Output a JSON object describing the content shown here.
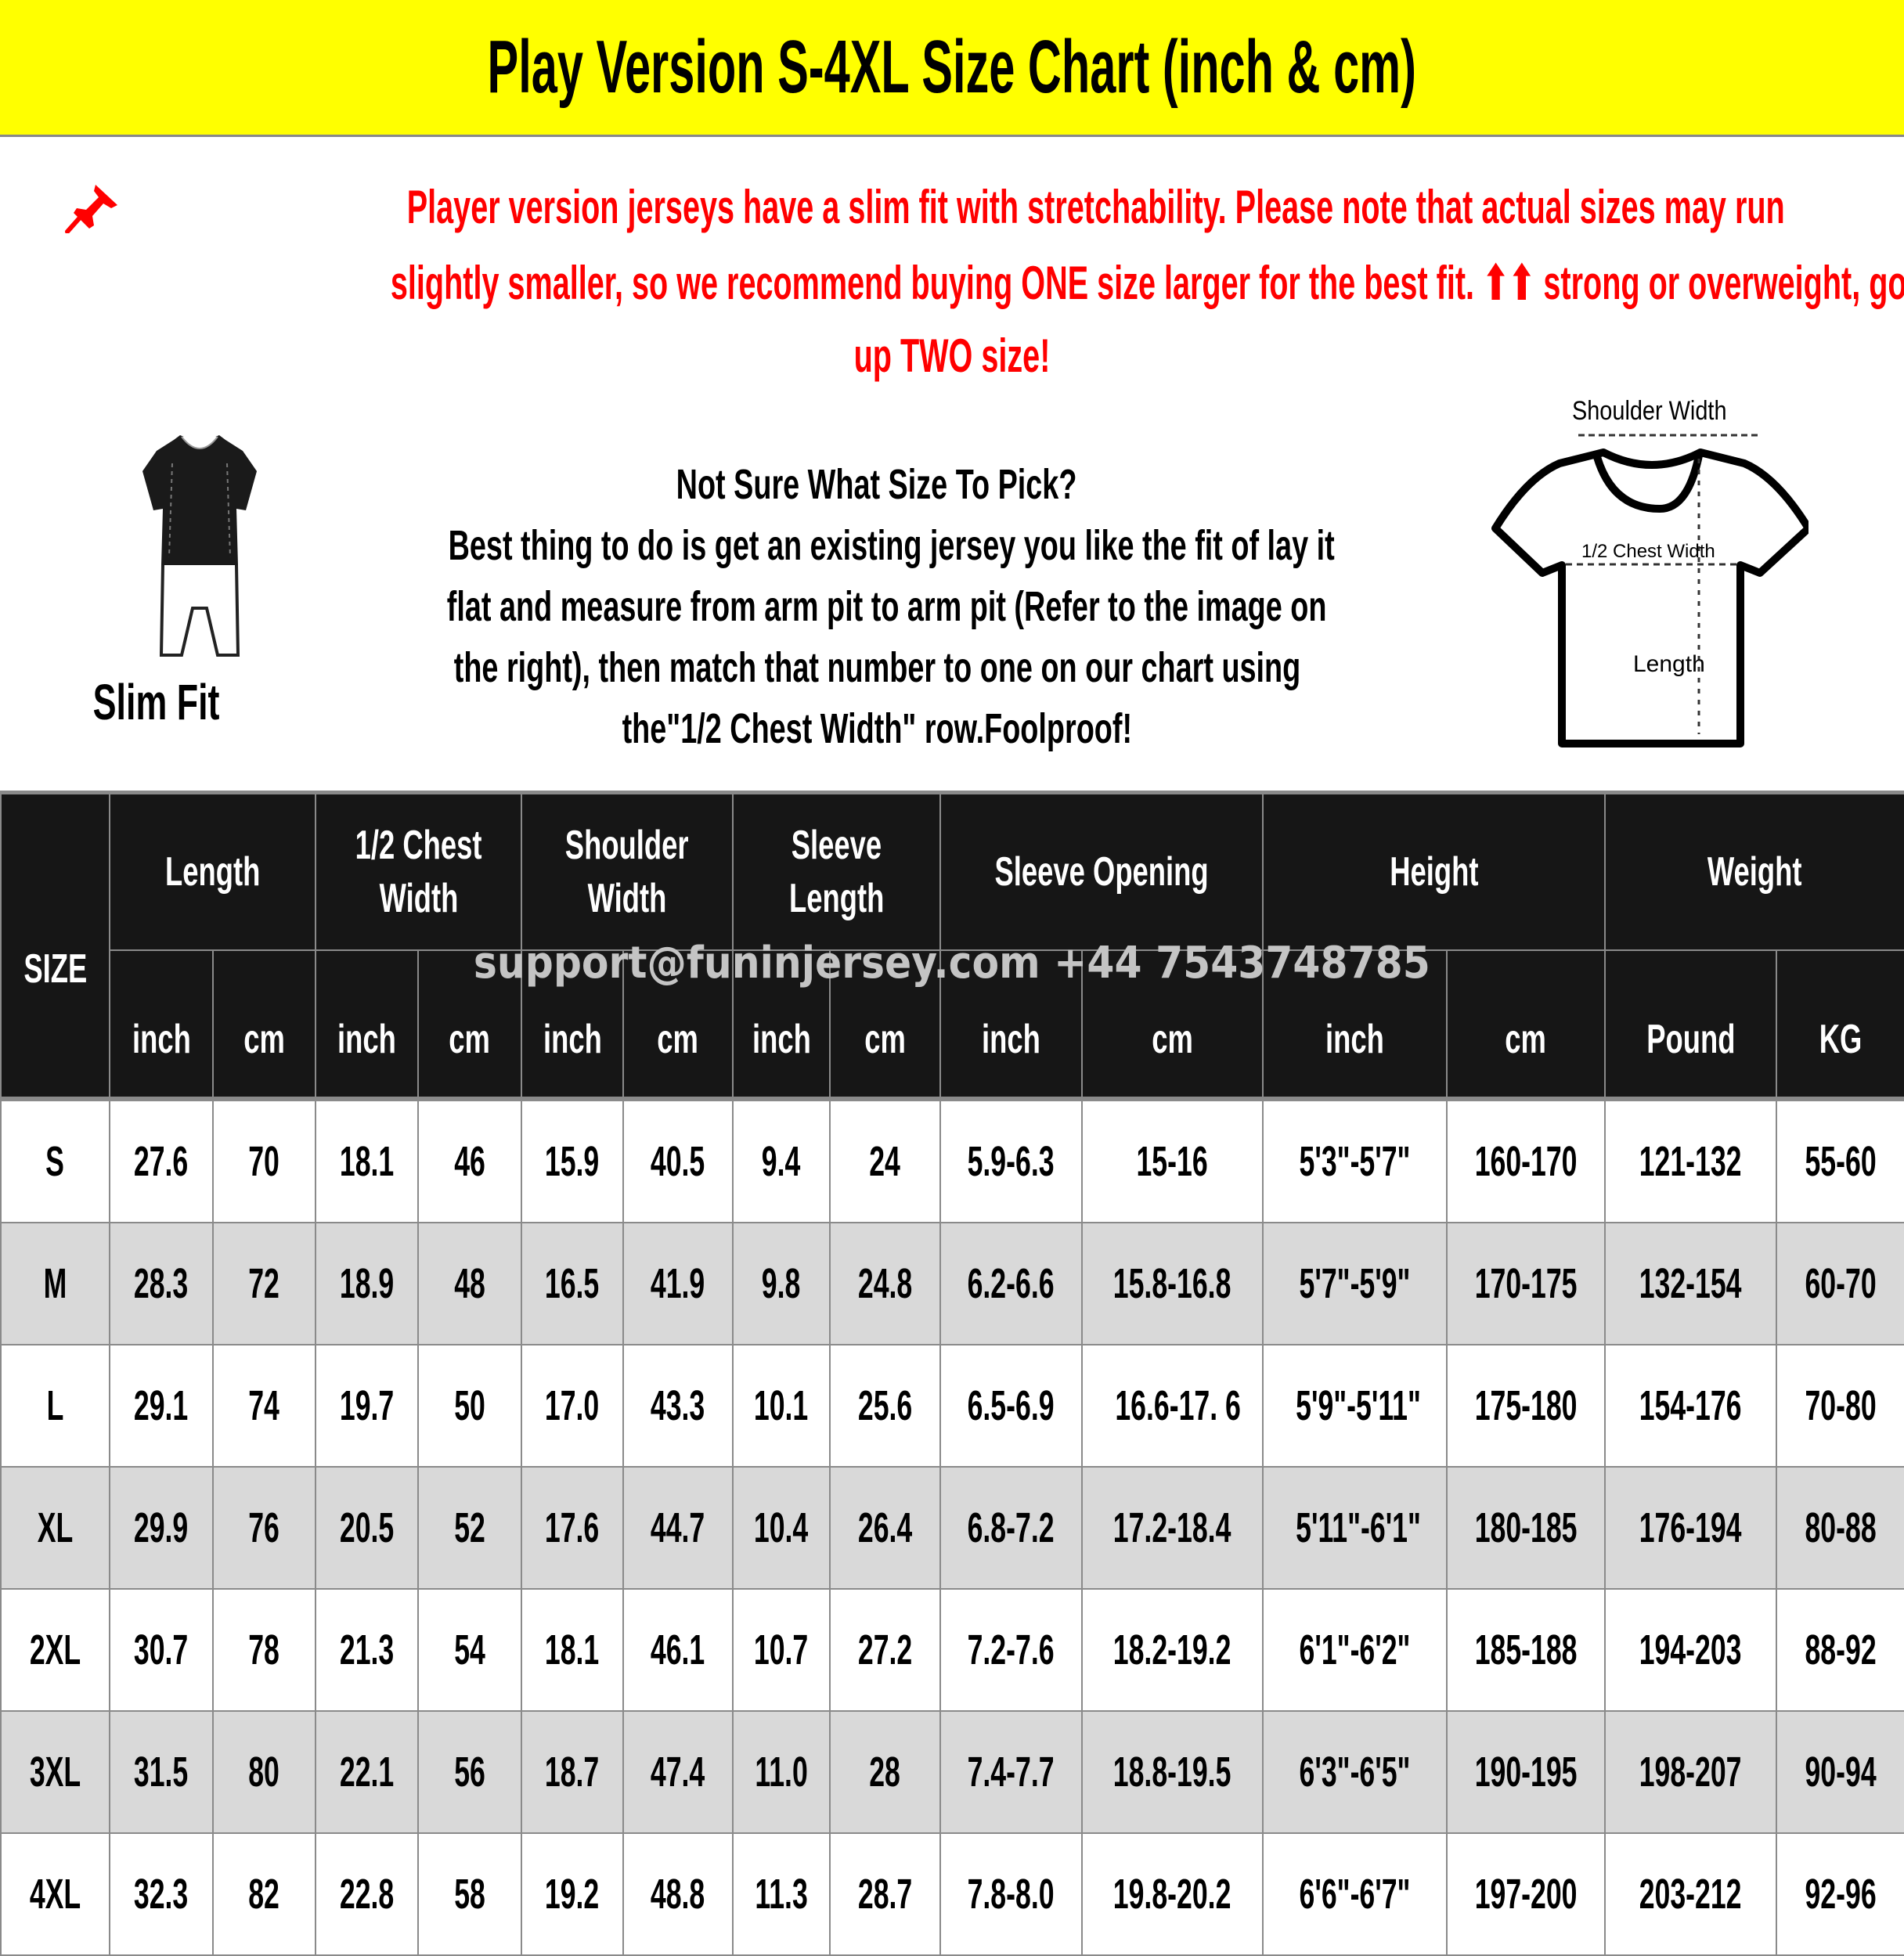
{
  "title": "Play Version S-4XL Size Chart (inch & cm)",
  "colors": {
    "title_band": "#ffff00",
    "notice_text": "#ff0000",
    "header_bg": "#161616",
    "alt_row": "#d9d9d9",
    "watermark": "#c4c4c4"
  },
  "notice": {
    "icon": "pushpin-icon",
    "lines": [
      "Player version jerseys have a slim fit with stretchability. Please note that actual sizes may run",
      "slightly smaller, so we recommend buying ONE size larger for the best fit. ⬆⬆ strong or overweight, go",
      "up TWO size!"
    ]
  },
  "slim_fit": {
    "label": "Slim Fit"
  },
  "guide": {
    "heading": "Not Sure What Size To Pick?",
    "lines": [
      "Best thing to do is get an existing jersey you like the fit of lay it",
      "flat and measure from arm pit to arm pit (Refer to the image on",
      "the right), then match that number to one on our chart using",
      "the\"1/2 Chest Width\" row.Foolproof!"
    ]
  },
  "diagram": {
    "shoulder_width": "Shoulder Width",
    "chest_width": "1/2 Chest Width",
    "length": "Length"
  },
  "watermark": "support@funinjersey.com +44 7543748785",
  "table": {
    "size_header": "SIZE",
    "groups": [
      {
        "label": [
          "Length"
        ],
        "units": [
          "inch",
          "cm"
        ]
      },
      {
        "label": [
          "1/2 Chest",
          "Width"
        ],
        "units": [
          "inch",
          "cm"
        ]
      },
      {
        "label": [
          "Shoulder",
          "Width"
        ],
        "units": [
          "inch",
          "cm"
        ]
      },
      {
        "label": [
          "Sleeve",
          "Length"
        ],
        "units": [
          "inch",
          "cm"
        ]
      },
      {
        "label": [
          "Sleeve Opening"
        ],
        "units": [
          "inch",
          "cm"
        ]
      },
      {
        "label": [
          "Height"
        ],
        "units": [
          "inch",
          "cm"
        ]
      },
      {
        "label": [
          "Weight"
        ],
        "units": [
          "Pound",
          "KG"
        ]
      }
    ],
    "rows": [
      [
        "S",
        "27.6",
        "70",
        "18.1",
        "46",
        "15.9",
        "40.5",
        "9.4",
        "24",
        "5.9-6.3",
        "15-16",
        "5'3\"-5'7\"",
        "160-170",
        "121-132",
        "55-60"
      ],
      [
        "M",
        "28.3",
        "72",
        "18.9",
        "48",
        "16.5",
        "41.9",
        "9.8",
        "24.8",
        "6.2-6.6",
        "15.8-16.8",
        "5'7\"-5'9\"",
        "170-175",
        "132-154",
        "60-70"
      ],
      [
        "L",
        "29.1",
        "74",
        "19.7",
        "50",
        "17.0",
        "43.3",
        "10.1",
        "25.6",
        "6.5-6.9",
        "16.6-17. 6",
        "5'9\"-5'11\"",
        "175-180",
        "154-176",
        "70-80"
      ],
      [
        "XL",
        "29.9",
        "76",
        "20.5",
        "52",
        "17.6",
        "44.7",
        "10.4",
        "26.4",
        "6.8-7.2",
        "17.2-18.4",
        "5'11\"-6'1\"",
        "180-185",
        "176-194",
        "80-88"
      ],
      [
        "2XL",
        "30.7",
        "78",
        "21.3",
        "54",
        "18.1",
        "46.1",
        "10.7",
        "27.2",
        "7.2-7.6",
        "18.2-19.2",
        "6'1\"-6'2\"",
        "185-188",
        "194-203",
        "88-92"
      ],
      [
        "3XL",
        "31.5",
        "80",
        "22.1",
        "56",
        "18.7",
        "47.4",
        "11.0",
        "28",
        "7.4-7.7",
        "18.8-19.5",
        "6'3\"-6'5\"",
        "190-195",
        "198-207",
        "90-94"
      ],
      [
        "4XL",
        "32.3",
        "82",
        "22.8",
        "58",
        "19.2",
        "48.8",
        "11.3",
        "28.7",
        "7.8-8.0",
        "19.8-20.2",
        "6'6\"-6'7\"",
        "197-200",
        "203-212",
        "92-96"
      ]
    ]
  }
}
